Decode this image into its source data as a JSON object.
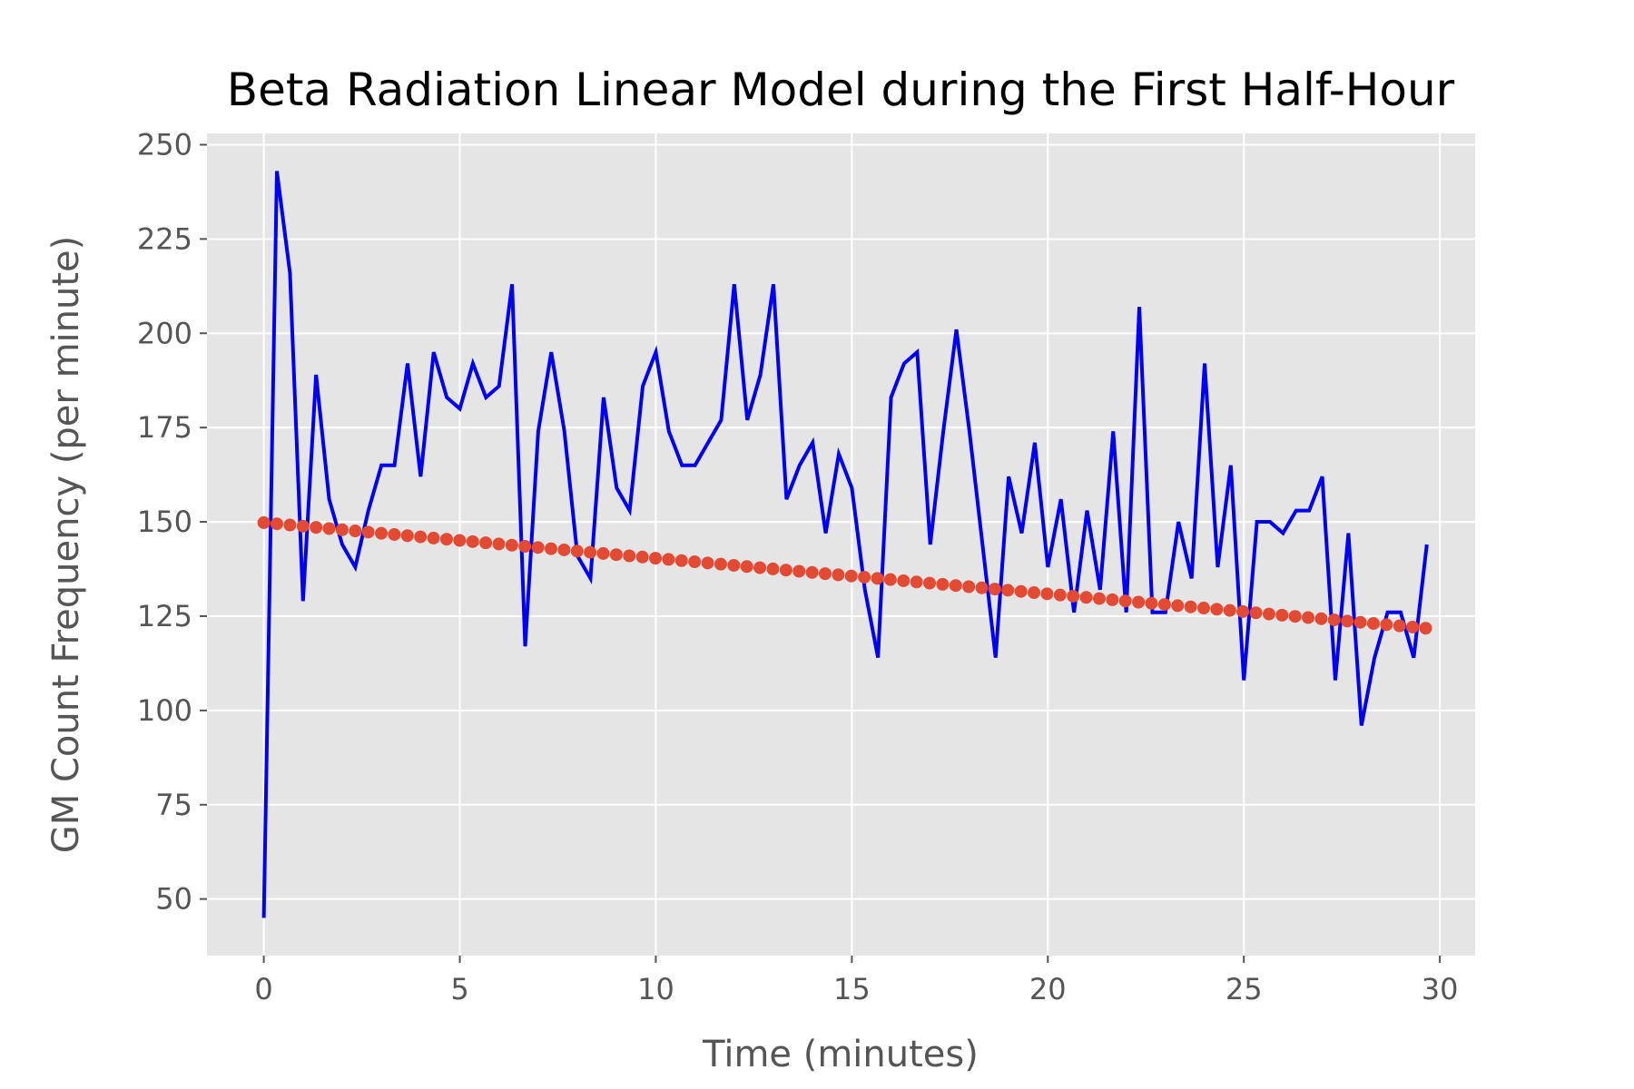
{
  "chart_data": {
    "type": "line",
    "title": "Beta Radiation Linear Model during the First Half-Hour",
    "xlabel": "Time (minutes)",
    "ylabel": "GM Count Frequency (per minute)",
    "xlim": [
      -1.45,
      30.9
    ],
    "ylim": [
      35,
      253
    ],
    "xticks": [
      0,
      5,
      10,
      15,
      20,
      25,
      30
    ],
    "yticks": [
      50,
      75,
      100,
      125,
      150,
      175,
      200,
      225,
      250
    ],
    "xtick_labels": [
      "0",
      "5",
      "10",
      "15",
      "20",
      "25",
      "30"
    ],
    "ytick_labels": [
      "50",
      "75",
      "100",
      "125",
      "150",
      "175",
      "200",
      "225",
      "250"
    ],
    "grid": true,
    "background": "#e5e5e5",
    "series": [
      {
        "style": "line",
        "color": "#0000ff",
        "x": [
          0,
          0.333,
          0.667,
          1,
          1.333,
          1.667,
          2,
          2.333,
          2.667,
          3,
          3.333,
          3.667,
          4,
          4.333,
          4.667,
          5,
          5.333,
          5.667,
          6,
          6.333,
          6.667,
          7,
          7.333,
          7.667,
          8,
          8.333,
          8.667,
          9,
          9.333,
          9.667,
          10,
          10.333,
          10.667,
          11,
          11.333,
          11.667,
          12,
          12.333,
          12.667,
          13,
          13.333,
          13.667,
          14,
          14.333,
          14.667,
          15,
          15.333,
          15.667,
          16,
          16.333,
          16.667,
          17,
          17.333,
          17.667,
          18,
          18.333,
          18.667,
          19,
          19.333,
          19.667,
          20,
          20.333,
          20.667,
          21,
          21.333,
          21.667,
          22,
          22.333,
          22.667,
          23,
          23.333,
          23.667,
          24,
          24.333,
          24.667,
          25,
          25.333,
          25.667,
          26,
          26.333,
          26.667,
          27,
          27.333,
          27.667,
          28,
          28.333,
          28.667,
          29,
          29.333,
          29.667
        ],
        "y": [
          45,
          243,
          216,
          129,
          189,
          156,
          144,
          138,
          153,
          165,
          165,
          192,
          162,
          195,
          183,
          180,
          192,
          183,
          186,
          213,
          117,
          174,
          195,
          174,
          141,
          135,
          183,
          159,
          153,
          186,
          195,
          174,
          165,
          165,
          171,
          177,
          213,
          177,
          189,
          213,
          156,
          165,
          171,
          147,
          168,
          159,
          132,
          114,
          183,
          192,
          195,
          144,
          174,
          201,
          174,
          144,
          114,
          162,
          147,
          171,
          138,
          156,
          126,
          153,
          132,
          174,
          126,
          207,
          126,
          126,
          150,
          135,
          192,
          138,
          165,
          108,
          150,
          150,
          147,
          153,
          153,
          162,
          108,
          147,
          96,
          114,
          126,
          126,
          114,
          144
        ]
      },
      {
        "style": "points",
        "color": "#e24a33",
        "x_start": 0,
        "x_step": 0.333,
        "count": 90,
        "y_start": 149.8,
        "y_end": 121.8
      }
    ]
  }
}
